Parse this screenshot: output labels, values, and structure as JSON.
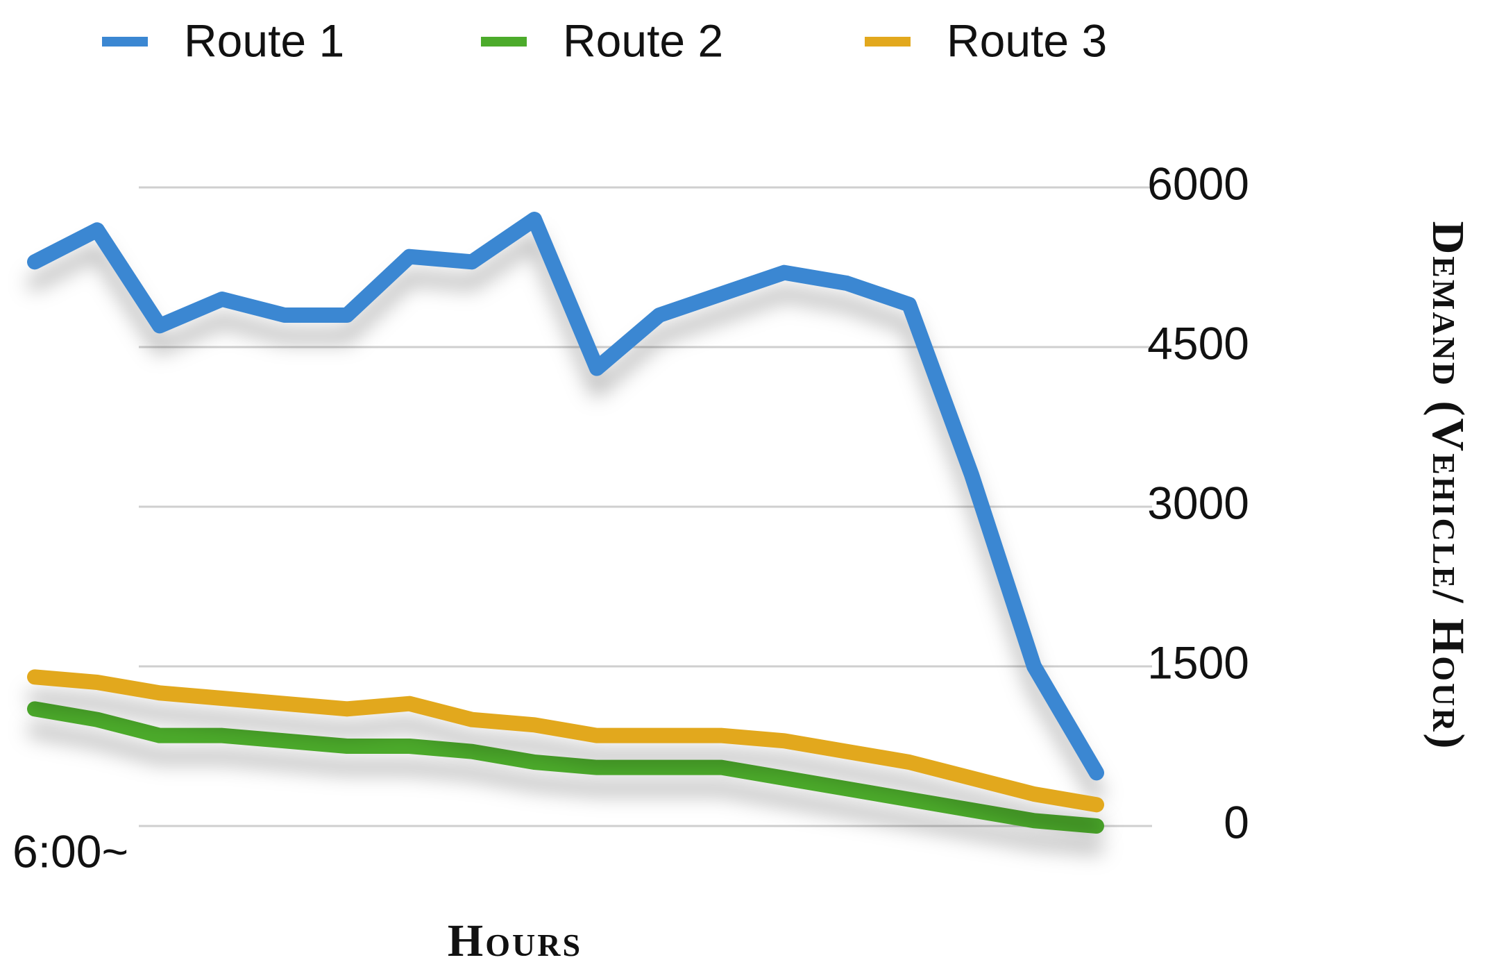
{
  "chart_data": {
    "type": "line",
    "categories": [
      "6:00~",
      null,
      null,
      null,
      null,
      null,
      null,
      null,
      null,
      null,
      null,
      null,
      null,
      null,
      null,
      null,
      null,
      null
    ],
    "series": [
      {
        "name": "Route 1",
        "color": "#3b87d2",
        "values": [
          5300,
          5600,
          4700,
          4950,
          4800,
          4800,
          5350,
          5300,
          5700,
          4300,
          4800,
          5000,
          5200,
          5100,
          4900,
          3300,
          1500,
          500
        ]
      },
      {
        "name": "Route 2",
        "color": "#4cab2b",
        "values": [
          1100,
          1000,
          850,
          850,
          800,
          750,
          750,
          700,
          600,
          550,
          550,
          550,
          450,
          350,
          250,
          150,
          50,
          0
        ]
      },
      {
        "name": "Route 3",
        "color": "#e2a81d",
        "values": [
          1400,
          1350,
          1250,
          1200,
          1150,
          1100,
          1150,
          1000,
          950,
          850,
          850,
          850,
          800,
          700,
          600,
          450,
          300,
          200
        ]
      }
    ],
    "x_label": "Hours",
    "y_label": "Demand (Vehicle/ Hour)",
    "ylim": [
      0,
      6000
    ],
    "yticks": [
      0,
      1500,
      3000,
      4500,
      6000
    ],
    "grid": true,
    "legend": "top"
  }
}
